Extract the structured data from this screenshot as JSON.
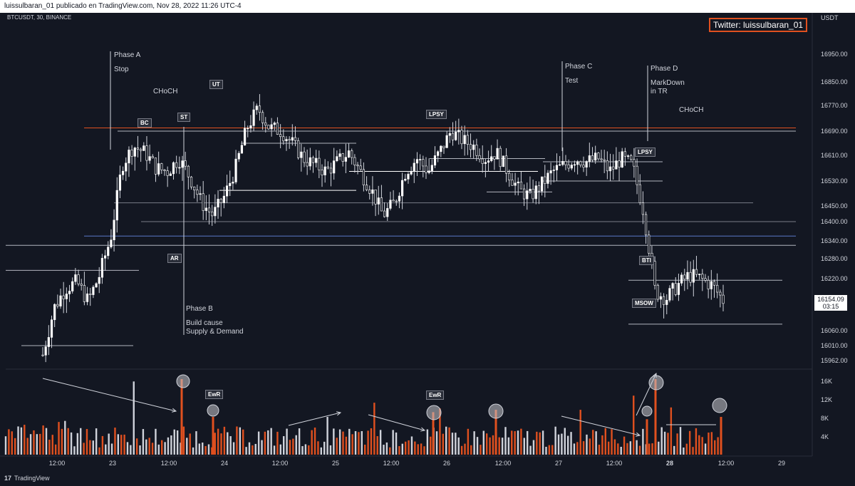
{
  "header": {
    "text": "luissulbaran_01 publicado en TradingView.com, Nov 28, 2022 11:26 UTC-4"
  },
  "symbol": "BTCUSDT, 30, BINANCE",
  "currency": "USDT",
  "twitter": "Twitter: luissulbaran_01",
  "footer": {
    "logo_mark": "17",
    "logo_text": "TradingView"
  },
  "colors": {
    "background": "#131722",
    "up_candle": "#ffffff",
    "down_candle": "#ffffff",
    "volume_up": "#cfd2da",
    "volume_down": "#e0501f",
    "orange_line": "#e0501f",
    "blue_line": "#5b78c8"
  },
  "price_axis": {
    "labels": [
      "16950.00",
      "16850.00",
      "16770.00",
      "16690.00",
      "16610.00",
      "16530.00",
      "16450.00",
      "16400.00",
      "16340.00",
      "16280.00",
      "16220.00",
      "16060.00",
      "16010.00",
      "15962.00"
    ],
    "current_price": "16154.09",
    "countdown": "03:15"
  },
  "volume_axis": {
    "labels": [
      "16K",
      "12K",
      "8K",
      "4K"
    ]
  },
  "time_axis": {
    "labels": [
      "12:00",
      "23",
      "12:00",
      "24",
      "12:00",
      "25",
      "12:00",
      "26",
      "12:00",
      "27",
      "12:00",
      "28",
      "12:00",
      "29"
    ]
  },
  "annotations": {
    "phase_a": "Phase A",
    "stop": "Stop",
    "choch_left": "CHoCH",
    "bc": "BC",
    "st": "ST",
    "ut": "UT",
    "ar": "AR",
    "phase_b": "Phase B",
    "build_cause": "Build cause\nSupply & Demand",
    "lpsy_mid": "LPSY",
    "phase_c": "Phase C",
    "test": "Test",
    "phase_d": "Phase D",
    "markdown": "MarkDown\nin TR",
    "choch_right": "CHoCH",
    "lpsy_right": "LPSY",
    "bti": "BTI",
    "msow": "MSOW",
    "ewr_1": "EwR",
    "ewr_2": "EwR"
  },
  "chart_data": {
    "type": "candlestick",
    "symbol": "BTCUSDT",
    "interval": "30",
    "exchange": "BINANCE",
    "x_ticks": [
      "12:00",
      "23",
      "12:00",
      "24",
      "12:00",
      "25",
      "12:00",
      "26",
      "12:00",
      "27",
      "12:00",
      "28",
      "12:00",
      "29"
    ],
    "y_range": [
      15962,
      17000
    ],
    "key_levels": [
      16700,
      16690,
      16650,
      16600,
      16590,
      16560,
      16530,
      16500,
      16460,
      16400,
      16355,
      16340,
      16325,
      16245,
      16215,
      16080,
      16010
    ],
    "approx_close_path": [
      15980,
      16130,
      16190,
      16210,
      16150,
      16230,
      16350,
      16580,
      16640,
      16620,
      16570,
      16560,
      16600,
      16540,
      16460,
      16420,
      16480,
      16570,
      16700,
      16760,
      16700,
      16690,
      16650,
      16600,
      16580,
      16560,
      16590,
      16620,
      16560,
      16500,
      16420,
      16460,
      16560,
      16600,
      16560,
      16620,
      16690,
      16660,
      16640,
      16600,
      16620,
      16560,
      16500,
      16480,
      16520,
      16560,
      16580,
      16600,
      16590,
      16600,
      16560,
      16600,
      16580,
      16430,
      16180,
      16160,
      16200,
      16230,
      16220,
      16200,
      16154
    ],
    "last_price": 16154.09,
    "volume": {
      "axis_max": 17000,
      "notable_spikes": [
        {
          "label": "EwR",
          "value": 10000
        },
        {
          "label": "EwR",
          "value": 10500
        }
      ]
    }
  }
}
